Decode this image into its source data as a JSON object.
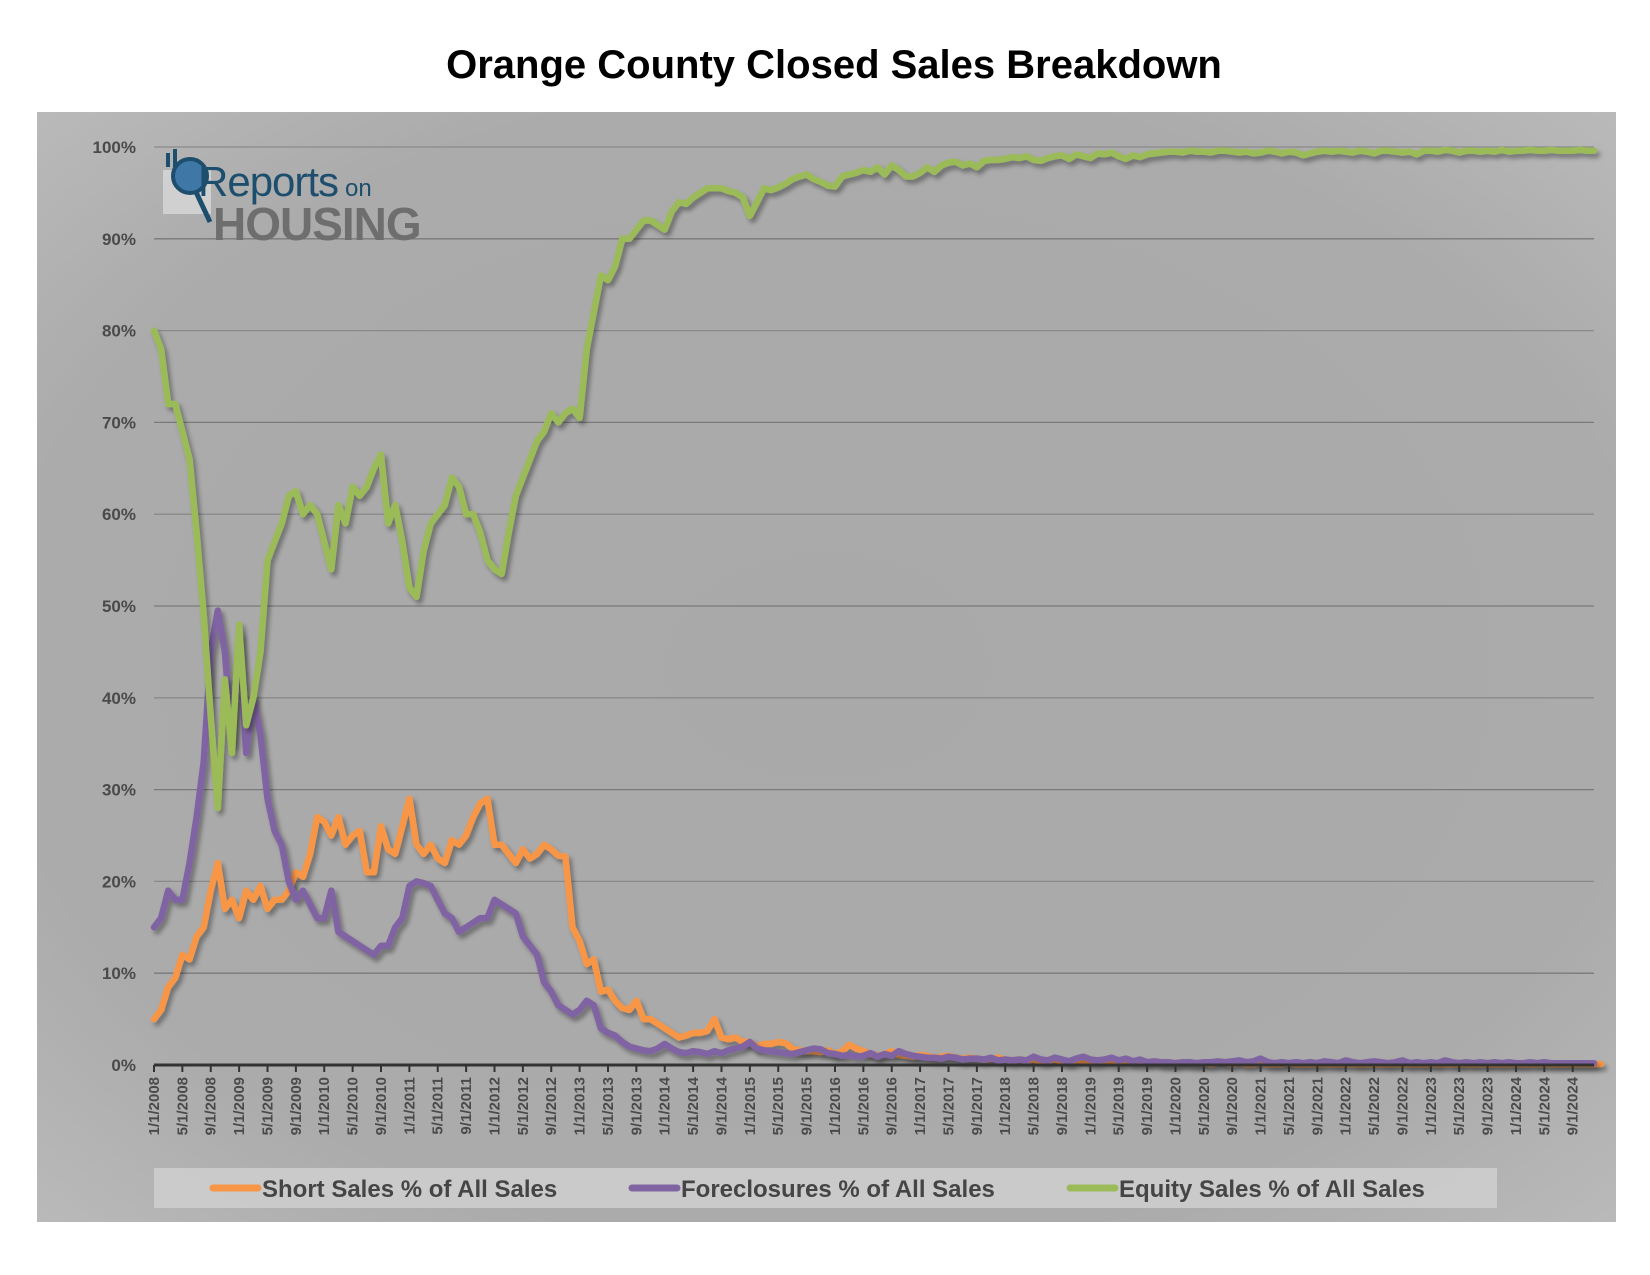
{
  "chart_data": {
    "type": "line",
    "title": "Orange County Closed Sales Breakdown",
    "xlabel": "",
    "ylabel": "",
    "x_start": "1/1/2008",
    "x_frequency": "monthly",
    "num_points": 204,
    "ylim": [
      0,
      100
    ],
    "y_ticks": [
      "0%",
      "10%",
      "20%",
      "30%",
      "40%",
      "50%",
      "60%",
      "70%",
      "80%",
      "90%",
      "100%"
    ],
    "x_tick_labels": [
      "1/1/2008",
      "5/1/2008",
      "9/1/2008",
      "1/1/2009",
      "5/1/2009",
      "9/1/2009",
      "1/1/2010",
      "5/1/2010",
      "9/1/2010",
      "1/1/2011",
      "5/1/2011",
      "9/1/2011",
      "1/1/2012",
      "5/1/2012",
      "9/1/2012",
      "1/1/2013",
      "5/1/2013",
      "9/1/2013",
      "1/1/2014",
      "5/1/2014",
      "9/1/2014",
      "1/1/2015",
      "5/1/2015",
      "9/1/2015",
      "1/1/2016",
      "5/1/2016",
      "9/1/2016",
      "1/1/2017",
      "5/1/2017",
      "9/1/2017",
      "1/1/2018",
      "5/1/2018",
      "9/1/2018",
      "1/1/2019",
      "5/1/2019",
      "9/1/2019",
      "1/1/2020",
      "5/1/2020",
      "9/1/2020",
      "1/1/2021",
      "5/1/2021",
      "9/1/2021",
      "1/1/2022",
      "5/1/2022",
      "9/1/2022",
      "1/1/2023",
      "5/1/2023",
      "9/1/2023",
      "1/1/2024",
      "5/1/2024",
      "9/1/2024"
    ],
    "grid": true,
    "legend_position": "bottom",
    "series": [
      {
        "name": "Short Sales % of All Sales",
        "color": "#f79646",
        "values": [
          5,
          6,
          8.5,
          9.5,
          12,
          11.5,
          14,
          15,
          19,
          22,
          17,
          18,
          16,
          19,
          18,
          19.5,
          17,
          18,
          18,
          19,
          21,
          20.5,
          23,
          27,
          26.5,
          25,
          27,
          24,
          25,
          25.5,
          21,
          21,
          26,
          23.5,
          23,
          26,
          29,
          24,
          23,
          24,
          22.5,
          22,
          24.5,
          24,
          25,
          27,
          28.5,
          29,
          24,
          24,
          23,
          22,
          23.5,
          22.5,
          23,
          24,
          23.5,
          22.8,
          22.7,
          15,
          13.5,
          11,
          11.5,
          8,
          8.2,
          7,
          6.2,
          6,
          7,
          5,
          5,
          4.5,
          4,
          3.5,
          3,
          3.2,
          3.5,
          3.5,
          3.7,
          5,
          3,
          2.8,
          3,
          2.5,
          2.5,
          2,
          2.3,
          2.3,
          2.5,
          2.4,
          1.8,
          1.6,
          1.5,
          1.5,
          1.4,
          1.6,
          1.2,
          1.5,
          2.2,
          1.8,
          1.5,
          1.2,
          1.0,
          1.2,
          1.5,
          1.1,
          1.0,
          0.9,
          1.1,
          1.0,
          0.8,
          0.9,
          1.0,
          0.8,
          0.7,
          0.8,
          0.7,
          0.6,
          0.7,
          0.8,
          0.6,
          0.5,
          0.6,
          0.5,
          0.6,
          0.4,
          0.5,
          0.6,
          0.4,
          0.3,
          0.4,
          0.5,
          0.3,
          0.3,
          0.4,
          0.3,
          0.2,
          0.3,
          0.3,
          0.2,
          0.3,
          0.4,
          0.2,
          0.2,
          0.2,
          0.3,
          0.2,
          0.2,
          0.2,
          0.1,
          0.2,
          0.2,
          0.1,
          0.2,
          0.1,
          0.1,
          0.2,
          0.1,
          0.1,
          0.1,
          0.2,
          0.1,
          0.1,
          0.1,
          0.1,
          0.1,
          0.1,
          0.1,
          0.1,
          0.1,
          0.1,
          0.1,
          0.1,
          0.1,
          0.1,
          0.1,
          0.1,
          0.1,
          0.1,
          0.1,
          0.1,
          0.1,
          0.1,
          0.1,
          0.1,
          0.1,
          0.1,
          0.1,
          0.1,
          0.1,
          0.1,
          0.1,
          0.1,
          0.1,
          0.1,
          0.1,
          0.1,
          0.1,
          0.1,
          0.1,
          0.1,
          0.1,
          0.1,
          0.1,
          0.1
        ]
      },
      {
        "name": "Foreclosures % of All Sales",
        "color": "#8064a2",
        "values": [
          15,
          16,
          19,
          18,
          18,
          22,
          27,
          33,
          45,
          49.5,
          45,
          35,
          47,
          34,
          40,
          36,
          29,
          25.5,
          24,
          20,
          18,
          19,
          17.5,
          16,
          16,
          19,
          14.5,
          14,
          13.5,
          13,
          12.5,
          12,
          13,
          13,
          15,
          16,
          19.5,
          20,
          19.8,
          19.5,
          18,
          16.5,
          16,
          14.5,
          15,
          15.5,
          16,
          16,
          18,
          17.5,
          17,
          16.5,
          14,
          13,
          12,
          9,
          8,
          6.5,
          6,
          5.5,
          6,
          7,
          6.5,
          4,
          3.5,
          3.2,
          2.5,
          2,
          1.8,
          1.6,
          1.5,
          1.8,
          2.3,
          1.8,
          1.4,
          1.3,
          1.5,
          1.4,
          1.2,
          1.5,
          1.3,
          1.6,
          1.8,
          2.0,
          2.5,
          1.8,
          1.6,
          1.5,
          1.4,
          1.3,
          1.2,
          1.4,
          1.6,
          1.8,
          1.7,
          1.3,
          1.2,
          1.0,
          1.1,
          0.9,
          1.0,
          1.3,
          0.9,
          1.2,
          1.0,
          1.5,
          1.2,
          1.0,
          0.9,
          0.8,
          0.8,
          0.7,
          0.9,
          0.8,
          0.6,
          0.7,
          0.7,
          0.6,
          0.8,
          0.5,
          0.6,
          0.5,
          0.6,
          0.5,
          0.9,
          0.6,
          0.5,
          0.8,
          0.6,
          0.4,
          0.7,
          0.9,
          0.6,
          0.5,
          0.6,
          0.8,
          0.5,
          0.7,
          0.4,
          0.6,
          0.3,
          0.4,
          0.3,
          0.3,
          0.2,
          0.3,
          0.3,
          0.2,
          0.3,
          0.3,
          0.4,
          0.3,
          0.4,
          0.5,
          0.3,
          0.4,
          0.7,
          0.3,
          0.2,
          0.3,
          0.2,
          0.3,
          0.2,
          0.3,
          0.2,
          0.4,
          0.3,
          0.2,
          0.5,
          0.3,
          0.2,
          0.3,
          0.4,
          0.3,
          0.2,
          0.3,
          0.5,
          0.2,
          0.3,
          0.2,
          0.3,
          0.2,
          0.5,
          0.3,
          0.2,
          0.3,
          0.2,
          0.3,
          0.2,
          0.3,
          0.2,
          0.3,
          0.2,
          0.2,
          0.3,
          0.2,
          0.3,
          0.2,
          0.2,
          0.2,
          0.2,
          0.2,
          0.2,
          0.2
        ]
      },
      {
        "name": "Equity Sales % of All Sales",
        "color": "#9bbb59",
        "values": [
          80,
          78,
          72,
          72,
          69,
          66,
          58,
          49,
          38,
          28,
          42,
          34,
          48,
          37,
          40,
          45,
          55,
          57,
          59,
          62,
          62.5,
          60,
          61,
          60,
          57,
          54,
          61,
          59,
          63,
          62,
          63,
          65,
          66.5,
          59,
          61,
          57,
          52,
          51,
          56,
          59,
          60,
          61,
          64,
          63,
          60,
          60,
          58,
          55,
          54,
          53.5,
          58,
          62,
          64,
          66,
          68,
          69,
          71,
          70,
          71,
          71.5,
          70.5,
          78,
          82,
          86,
          85.5,
          87,
          90,
          90,
          91,
          92,
          92,
          91.5,
          91,
          93,
          94,
          93.8,
          94.5,
          95,
          95.5,
          95.5,
          95.5,
          95.2,
          95,
          94.5,
          92.5,
          94,
          95.5,
          95.3,
          95.6,
          96,
          96.5,
          96.8,
          97,
          96.5,
          96.2,
          95.8,
          95.7,
          96.8,
          97,
          97.2,
          97.5,
          97.3,
          97.8,
          97,
          98,
          97.5,
          96.8,
          96.8,
          97.2,
          97.8,
          97.3,
          98,
          98.3,
          98.4,
          98,
          98.2,
          97.8,
          98.5,
          98.6,
          98.6,
          98.7,
          98.9,
          98.8,
          99.0,
          98.6,
          98.5,
          98.8,
          99.0,
          99.1,
          98.7,
          99.2,
          99.0,
          98.8,
          99.3,
          99.2,
          99.4,
          99.0,
          98.7,
          99.1,
          98.9,
          99.2,
          99.3,
          99.4,
          99.5,
          99.5,
          99.4,
          99.6,
          99.5,
          99.5,
          99.4,
          99.6,
          99.6,
          99.5,
          99.4,
          99.5,
          99.3,
          99.4,
          99.6,
          99.5,
          99.3,
          99.5,
          99.4,
          99.1,
          99.3,
          99.5,
          99.6,
          99.5,
          99.6,
          99.5,
          99.4,
          99.6,
          99.5,
          99.3,
          99.6,
          99.6,
          99.5,
          99.4,
          99.5,
          99.2,
          99.6,
          99.6,
          99.5,
          99.7,
          99.6,
          99.4,
          99.6,
          99.6,
          99.5,
          99.6,
          99.5,
          99.7,
          99.5,
          99.6,
          99.6,
          99.7,
          99.6,
          99.6,
          99.7,
          99.6,
          99.6,
          99.6,
          99.7,
          99.6,
          99.6
        ]
      }
    ]
  },
  "logo": {
    "line1": "Reports",
    "line1_small": "on",
    "line2": "HOUSING"
  }
}
